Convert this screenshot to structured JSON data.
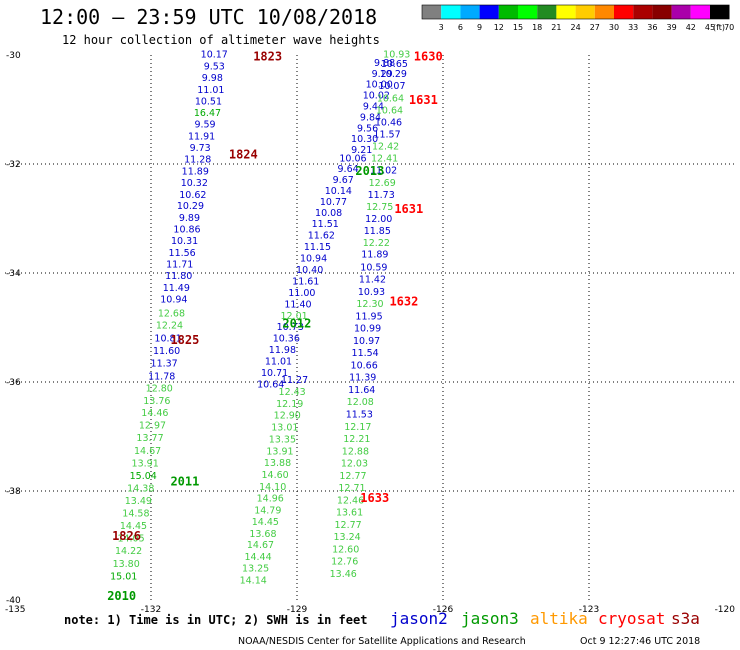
{
  "header": {
    "title": "12:00 – 23:59 UTC 10/08/2018",
    "subtitle": "12 hour collection of altimeter wave heights"
  },
  "scale": {
    "labels": [
      "3",
      "6",
      "9",
      "12",
      "15",
      "18",
      "21",
      "24",
      "27",
      "30",
      "33",
      "36",
      "39",
      "42",
      "45",
      "70"
    ],
    "unit": "(ft)",
    "colors": [
      "#808080",
      "#00ffff",
      "#00aaff",
      "#0000ff",
      "#00bb00",
      "#00ff00",
      "#228b22",
      "#ffff00",
      "#ffcc00",
      "#ff8800",
      "#ff0000",
      "#aa0000",
      "#880000",
      "#aa00aa",
      "#ff00ff",
      "#000000"
    ]
  },
  "footer": {
    "note": "note: 1) Time is in UTC; 2) SWH is in feet",
    "credit": "NOAA/NESDIS Center for Satellite Applications and Research",
    "timestamp": "Oct  9 12:27:46 UTC 2018"
  },
  "satellites": [
    {
      "name": "jason2",
      "color": "#0000cc"
    },
    {
      "name": "jason3",
      "color": "#009900"
    },
    {
      "name": "altika",
      "color": "#ff9900"
    },
    {
      "name": "cryosat",
      "color": "#ff0000"
    },
    {
      "name": "s3a",
      "color": "#990000"
    }
  ],
  "chart_data": {
    "type": "scatter",
    "title": "12:00 – 23:59 UTC 10/08/2018",
    "xlim": [
      -135,
      -120
    ],
    "ylim": [
      -40,
      -30
    ],
    "x_ticks": [
      "-135",
      "-132",
      "-129",
      "-126",
      "-123",
      "-120"
    ],
    "y_ticks": [
      "-30",
      "-32",
      "-34",
      "-36",
      "-38",
      "-40"
    ],
    "grid": true,
    "pass_labels": [
      {
        "label": "1823",
        "lon": -129.9,
        "lat": -30.1,
        "color": "#990000"
      },
      {
        "label": "1824",
        "lon": -130.4,
        "lat": -31.9,
        "color": "#990000"
      },
      {
        "label": "1825",
        "lon": -131.6,
        "lat": -35.3,
        "color": "#990000"
      },
      {
        "label": "1826",
        "lon": -132.8,
        "lat": -38.9,
        "color": "#990000"
      },
      {
        "label": "2010",
        "lon": -132.9,
        "lat": -40.0,
        "color": "#009900"
      },
      {
        "label": "2011",
        "lon": -131.6,
        "lat": -37.9,
        "color": "#009900"
      },
      {
        "label": "2012",
        "lon": -129.3,
        "lat": -35.0,
        "color": "#009900"
      },
      {
        "label": "2013",
        "lon": -127.8,
        "lat": -32.2,
        "color": "#009900"
      },
      {
        "label": "1630",
        "lon": -126.6,
        "lat": -30.1,
        "color": "#ff0000"
      },
      {
        "label": "1631",
        "lon": -126.7,
        "lat": -30.9,
        "color": "#ff0000"
      },
      {
        "label": "1631",
        "lon": -127.0,
        "lat": -32.9,
        "color": "#ff0000"
      },
      {
        "label": "1632",
        "lon": -127.1,
        "lat": -34.6,
        "color": "#ff0000"
      },
      {
        "label": "1633",
        "lon": -127.7,
        "lat": -38.2,
        "color": "#ff0000"
      }
    ],
    "points": [
      {
        "lon": -130.7,
        "lat": -30.05,
        "v": "10.17",
        "c": "#0000cc"
      },
      {
        "lon": -130.7,
        "lat": -30.27,
        "v": "9.53",
        "c": "#0000cc"
      },
      {
        "lon": -130.74,
        "lat": -30.48,
        "v": "9.98",
        "c": "#0000cc"
      },
      {
        "lon": -130.77,
        "lat": -30.7,
        "v": "11.01",
        "c": "#0000cc"
      },
      {
        "lon": -130.82,
        "lat": -30.91,
        "v": "10.51",
        "c": "#0000cc"
      },
      {
        "lon": -130.84,
        "lat": -31.12,
        "v": "16.47",
        "c": "#00aa00"
      },
      {
        "lon": -130.89,
        "lat": -31.33,
        "v": "9.59",
        "c": "#0000cc"
      },
      {
        "lon": -130.96,
        "lat": -31.55,
        "v": "11.91",
        "c": "#0000cc"
      },
      {
        "lon": -130.99,
        "lat": -31.76,
        "v": "9.73",
        "c": "#0000cc"
      },
      {
        "lon": -131.04,
        "lat": -31.97,
        "v": "11.28",
        "c": "#0000cc"
      },
      {
        "lon": -131.09,
        "lat": -32.19,
        "v": "11.89",
        "c": "#0000cc"
      },
      {
        "lon": -131.11,
        "lat": -32.4,
        "v": "10.32",
        "c": "#0000cc"
      },
      {
        "lon": -131.14,
        "lat": -32.62,
        "v": "10.62",
        "c": "#0000cc"
      },
      {
        "lon": -131.19,
        "lat": -32.83,
        "v": "10.29",
        "c": "#0000cc"
      },
      {
        "lon": -131.21,
        "lat": -33.05,
        "v": "9.89",
        "c": "#0000cc"
      },
      {
        "lon": -131.26,
        "lat": -33.26,
        "v": "10.86",
        "c": "#0000cc"
      },
      {
        "lon": -131.31,
        "lat": -33.47,
        "v": "10.31",
        "c": "#0000cc"
      },
      {
        "lon": -131.36,
        "lat": -33.69,
        "v": "11.56",
        "c": "#0000cc"
      },
      {
        "lon": -131.41,
        "lat": -33.9,
        "v": "11.71",
        "c": "#0000cc"
      },
      {
        "lon": -131.43,
        "lat": -34.11,
        "v": "11.80",
        "c": "#0000cc"
      },
      {
        "lon": -131.48,
        "lat": -34.33,
        "v": "11.49",
        "c": "#0000cc"
      },
      {
        "lon": -131.53,
        "lat": -34.54,
        "v": "10.94",
        "c": "#0000cc"
      },
      {
        "lon": -131.58,
        "lat": -34.8,
        "v": "12.68",
        "c": "#44cc44"
      },
      {
        "lon": -131.62,
        "lat": -35.02,
        "v": "12.24",
        "c": "#44cc44"
      },
      {
        "lon": -131.65,
        "lat": -35.26,
        "v": "10.81",
        "c": "#0000cc"
      },
      {
        "lon": -131.68,
        "lat": -35.49,
        "v": "11.60",
        "c": "#0000cc"
      },
      {
        "lon": -131.73,
        "lat": -35.72,
        "v": "11.37",
        "c": "#0000cc"
      },
      {
        "lon": -131.78,
        "lat": -35.95,
        "v": "11.78",
        "c": "#0000cc"
      },
      {
        "lon": -131.83,
        "lat": -36.17,
        "v": "12.80",
        "c": "#44cc44"
      },
      {
        "lon": -131.88,
        "lat": -36.4,
        "v": "13.76",
        "c": "#44cc44"
      },
      {
        "lon": -131.92,
        "lat": -36.62,
        "v": "14.46",
        "c": "#44cc44"
      },
      {
        "lon": -131.97,
        "lat": -36.85,
        "v": "12.97",
        "c": "#44cc44"
      },
      {
        "lon": -132.02,
        "lat": -37.08,
        "v": "13.77",
        "c": "#44cc44"
      },
      {
        "lon": -132.07,
        "lat": -37.32,
        "v": "14.67",
        "c": "#44cc44"
      },
      {
        "lon": -132.12,
        "lat": -37.55,
        "v": "13.91",
        "c": "#44cc44"
      },
      {
        "lon": -132.16,
        "lat": -37.78,
        "v": "15.04",
        "c": "#00aa00"
      },
      {
        "lon": -132.21,
        "lat": -38.01,
        "v": "14.38",
        "c": "#44cc44"
      },
      {
        "lon": -132.26,
        "lat": -38.24,
        "v": "13.49",
        "c": "#44cc44"
      },
      {
        "lon": -132.31,
        "lat": -38.47,
        "v": "14.58",
        "c": "#44cc44"
      },
      {
        "lon": -132.36,
        "lat": -38.7,
        "v": "14.45",
        "c": "#44cc44"
      },
      {
        "lon": -132.41,
        "lat": -38.93,
        "v": "14.05",
        "c": "#44cc44"
      },
      {
        "lon": -132.46,
        "lat": -39.16,
        "v": "14.22",
        "c": "#44cc44"
      },
      {
        "lon": -132.51,
        "lat": -39.39,
        "v": "13.80",
        "c": "#44cc44"
      },
      {
        "lon": -132.56,
        "lat": -39.62,
        "v": "15.01",
        "c": "#00aa00"
      },
      {
        "lon": -129.05,
        "lat": -36.02,
        "v": "11.27",
        "c": "#0000cc"
      },
      {
        "lon": -129.1,
        "lat": -36.24,
        "v": "12.43",
        "c": "#44cc44"
      },
      {
        "lon": -129.15,
        "lat": -36.46,
        "v": "12.19",
        "c": "#44cc44"
      },
      {
        "lon": -129.2,
        "lat": -36.67,
        "v": "12.90",
        "c": "#44cc44"
      },
      {
        "lon": -129.25,
        "lat": -36.89,
        "v": "13.01",
        "c": "#44cc44"
      },
      {
        "lon": -129.3,
        "lat": -37.11,
        "v": "13.35",
        "c": "#44cc44"
      },
      {
        "lon": -129.35,
        "lat": -37.33,
        "v": "13.91",
        "c": "#44cc44"
      },
      {
        "lon": -129.4,
        "lat": -37.54,
        "v": "13.88",
        "c": "#44cc44"
      },
      {
        "lon": -129.45,
        "lat": -37.76,
        "v": "14.60",
        "c": "#44cc44"
      },
      {
        "lon": -129.5,
        "lat": -37.98,
        "v": "14.10",
        "c": "#44cc44"
      },
      {
        "lon": -129.55,
        "lat": -38.19,
        "v": "14.96",
        "c": "#44cc44"
      },
      {
        "lon": -129.6,
        "lat": -38.41,
        "v": "14.79",
        "c": "#44cc44"
      },
      {
        "lon": -129.65,
        "lat": -38.62,
        "v": "14.45",
        "c": "#44cc44"
      },
      {
        "lon": -129.7,
        "lat": -38.84,
        "v": "13.68",
        "c": "#44cc44"
      },
      {
        "lon": -129.75,
        "lat": -39.05,
        "v": "14.67",
        "c": "#44cc44"
      },
      {
        "lon": -129.8,
        "lat": -39.27,
        "v": "14.44",
        "c": "#44cc44"
      },
      {
        "lon": -129.85,
        "lat": -39.48,
        "v": "13.25",
        "c": "#44cc44"
      },
      {
        "lon": -129.9,
        "lat": -39.7,
        "v": "14.14",
        "c": "#44cc44"
      },
      {
        "lon": -127.85,
        "lat": -31.95,
        "v": "10.06",
        "c": "#0000cc"
      },
      {
        "lon": -127.95,
        "lat": -32.15,
        "v": "9.64",
        "c": "#0000cc"
      },
      {
        "lon": -128.05,
        "lat": -32.35,
        "v": "9.67",
        "c": "#0000cc"
      },
      {
        "lon": -128.15,
        "lat": -32.55,
        "v": "10.14",
        "c": "#0000cc"
      },
      {
        "lon": -128.25,
        "lat": -32.75,
        "v": "10.77",
        "c": "#0000cc"
      },
      {
        "lon": -128.35,
        "lat": -32.95,
        "v": "10.08",
        "c": "#0000cc"
      },
      {
        "lon": -128.42,
        "lat": -33.16,
        "v": "11.51",
        "c": "#0000cc"
      },
      {
        "lon": -128.5,
        "lat": -33.37,
        "v": "11.62",
        "c": "#0000cc"
      },
      {
        "lon": -128.58,
        "lat": -33.58,
        "v": "11.15",
        "c": "#0000cc"
      },
      {
        "lon": -128.66,
        "lat": -33.79,
        "v": "10.94",
        "c": "#0000cc"
      },
      {
        "lon": -128.74,
        "lat": -34.0,
        "v": "10.40",
        "c": "#0000cc"
      },
      {
        "lon": -128.82,
        "lat": -34.21,
        "v": "11.61",
        "c": "#0000cc"
      },
      {
        "lon": -128.9,
        "lat": -34.42,
        "v": "11.00",
        "c": "#0000cc"
      },
      {
        "lon": -128.98,
        "lat": -34.63,
        "v": "11.40",
        "c": "#0000cc"
      },
      {
        "lon": -129.06,
        "lat": -34.84,
        "v": "12.01",
        "c": "#44cc44"
      },
      {
        "lon": -129.14,
        "lat": -35.05,
        "v": "10.73",
        "c": "#0000cc"
      },
      {
        "lon": -129.22,
        "lat": -35.26,
        "v": "10.36",
        "c": "#0000cc"
      },
      {
        "lon": -129.3,
        "lat": -35.47,
        "v": "11.98",
        "c": "#0000cc"
      },
      {
        "lon": -129.38,
        "lat": -35.68,
        "v": "11.01",
        "c": "#0000cc"
      },
      {
        "lon": -129.46,
        "lat": -35.89,
        "v": "10.71",
        "c": "#0000cc"
      },
      {
        "lon": -129.54,
        "lat": -36.1,
        "v": "10.64",
        "c": "#0000cc"
      },
      {
        "lon": -127.2,
        "lat": -30.2,
        "v": "9.88",
        "c": "#0000cc"
      },
      {
        "lon": -127.25,
        "lat": -30.4,
        "v": "9.29",
        "c": "#0000cc"
      },
      {
        "lon": -127.31,
        "lat": -30.6,
        "v": "10.00",
        "c": "#0000cc"
      },
      {
        "lon": -127.37,
        "lat": -30.8,
        "v": "10.02",
        "c": "#0000cc"
      },
      {
        "lon": -127.43,
        "lat": -31.0,
        "v": "9.44",
        "c": "#0000cc"
      },
      {
        "lon": -127.49,
        "lat": -31.2,
        "v": "9.84",
        "c": "#0000cc"
      },
      {
        "lon": -127.55,
        "lat": -31.4,
        "v": "9.56",
        "c": "#0000cc"
      },
      {
        "lon": -127.61,
        "lat": -31.6,
        "v": "10.30",
        "c": "#0000cc"
      },
      {
        "lon": -127.67,
        "lat": -31.8,
        "v": "9.21",
        "c": "#0000cc"
      },
      {
        "lon": -126.95,
        "lat": -30.05,
        "v": "10.93",
        "c": "#44cc44"
      },
      {
        "lon": -127.0,
        "lat": -30.22,
        "v": "10.65",
        "c": "#0000cc"
      },
      {
        "lon": -127.02,
        "lat": -30.4,
        "v": "10.29",
        "c": "#0000cc"
      },
      {
        "lon": -127.05,
        "lat": -30.62,
        "v": "10.07",
        "c": "#0000cc"
      },
      {
        "lon": -127.08,
        "lat": -30.85,
        "v": "10.64",
        "c": "#44cc44"
      },
      {
        "lon": -127.1,
        "lat": -31.07,
        "v": "10.64",
        "c": "#44cc44"
      },
      {
        "lon": -127.12,
        "lat": -31.29,
        "v": "10.46",
        "c": "#0000cc"
      },
      {
        "lon": -127.15,
        "lat": -31.51,
        "v": "11.57",
        "c": "#0000cc"
      },
      {
        "lon": -127.18,
        "lat": -31.73,
        "v": "12.42",
        "c": "#44cc44"
      },
      {
        "lon": -127.2,
        "lat": -31.95,
        "v": "12.41",
        "c": "#44cc44"
      },
      {
        "lon": -127.22,
        "lat": -32.17,
        "v": "11.02",
        "c": "#0000cc"
      },
      {
        "lon": -127.25,
        "lat": -32.4,
        "v": "12.69",
        "c": "#44cc44"
      },
      {
        "lon": -127.27,
        "lat": -32.62,
        "v": "11.73",
        "c": "#0000cc"
      },
      {
        "lon": -127.3,
        "lat": -32.84,
        "v": "12.75",
        "c": "#44cc44"
      },
      {
        "lon": -127.32,
        "lat": -33.06,
        "v": "12.00",
        "c": "#0000cc"
      },
      {
        "lon": -127.35,
        "lat": -33.28,
        "v": "11.85",
        "c": "#0000cc"
      },
      {
        "lon": -127.37,
        "lat": -33.5,
        "v": "12.22",
        "c": "#44cc44"
      },
      {
        "lon": -127.4,
        "lat": -33.72,
        "v": "11.89",
        "c": "#0000cc"
      },
      {
        "lon": -127.42,
        "lat": -33.95,
        "v": "10.59",
        "c": "#0000cc"
      },
      {
        "lon": -127.45,
        "lat": -34.17,
        "v": "11.42",
        "c": "#0000cc"
      },
      {
        "lon": -127.47,
        "lat": -34.4,
        "v": "10.93",
        "c": "#0000cc"
      },
      {
        "lon": -127.5,
        "lat": -34.62,
        "v": "12.30",
        "c": "#44cc44"
      },
      {
        "lon": -127.52,
        "lat": -34.85,
        "v": "11.95",
        "c": "#0000cc"
      },
      {
        "lon": -127.55,
        "lat": -35.07,
        "v": "10.99",
        "c": "#0000cc"
      },
      {
        "lon": -127.57,
        "lat": -35.3,
        "v": "10.97",
        "c": "#0000cc"
      },
      {
        "lon": -127.6,
        "lat": -35.52,
        "v": "11.54",
        "c": "#0000cc"
      },
      {
        "lon": -127.62,
        "lat": -35.75,
        "v": "10.66",
        "c": "#0000cc"
      },
      {
        "lon": -127.65,
        "lat": -35.97,
        "v": "11.39",
        "c": "#0000cc"
      },
      {
        "lon": -127.67,
        "lat": -36.2,
        "v": "11.64",
        "c": "#0000cc"
      },
      {
        "lon": -127.7,
        "lat": -36.42,
        "v": "12.08",
        "c": "#44cc44"
      },
      {
        "lon": -127.72,
        "lat": -36.65,
        "v": "11.53",
        "c": "#0000cc"
      },
      {
        "lon": -127.75,
        "lat": -36.88,
        "v": "12.17",
        "c": "#44cc44"
      },
      {
        "lon": -127.77,
        "lat": -37.1,
        "v": "12.21",
        "c": "#44cc44"
      },
      {
        "lon": -127.8,
        "lat": -37.33,
        "v": "12.88",
        "c": "#44cc44"
      },
      {
        "lon": -127.82,
        "lat": -37.55,
        "v": "12.03",
        "c": "#44cc44"
      },
      {
        "lon": -127.85,
        "lat": -37.78,
        "v": "12.77",
        "c": "#44cc44"
      },
      {
        "lon": -127.87,
        "lat": -38.0,
        "v": "12.71",
        "c": "#44cc44"
      },
      {
        "lon": -127.9,
        "lat": -38.23,
        "v": "12.46",
        "c": "#44cc44"
      },
      {
        "lon": -127.92,
        "lat": -38.45,
        "v": "13.61",
        "c": "#44cc44"
      },
      {
        "lon": -127.95,
        "lat": -38.68,
        "v": "12.77",
        "c": "#44cc44"
      },
      {
        "lon": -127.97,
        "lat": -38.9,
        "v": "13.24",
        "c": "#44cc44"
      },
      {
        "lon": -128.0,
        "lat": -39.13,
        "v": "12.60",
        "c": "#44cc44"
      },
      {
        "lon": -128.02,
        "lat": -39.35,
        "v": "12.76",
        "c": "#44cc44"
      },
      {
        "lon": -128.05,
        "lat": -39.58,
        "v": "13.46",
        "c": "#44cc44"
      }
    ]
  }
}
